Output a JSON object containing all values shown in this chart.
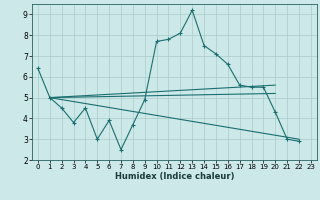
{
  "title": "",
  "xlabel": "Humidex (Indice chaleur)",
  "ylabel": "",
  "xlim": [
    -0.5,
    23.5
  ],
  "ylim": [
    2,
    9.5
  ],
  "bg_color": "#cce8e8",
  "grid_color": "#aacccc",
  "line_color": "#1a6e6e",
  "xticks": [
    0,
    1,
    2,
    3,
    4,
    5,
    6,
    7,
    8,
    9,
    10,
    11,
    12,
    13,
    14,
    15,
    16,
    17,
    18,
    19,
    20,
    21,
    22,
    23
  ],
  "yticks": [
    2,
    3,
    4,
    5,
    6,
    7,
    8,
    9
  ],
  "series": [
    {
      "x": [
        0,
        1,
        2,
        3,
        4,
        5,
        6,
        7,
        8,
        9,
        10,
        11,
        12,
        13,
        14,
        15,
        16,
        17,
        18,
        19,
        20,
        21,
        22
      ],
      "y": [
        6.4,
        5.0,
        4.5,
        3.8,
        4.5,
        3.0,
        3.9,
        2.5,
        3.7,
        4.9,
        7.7,
        7.8,
        8.1,
        9.2,
        7.5,
        7.1,
        6.6,
        5.6,
        5.5,
        5.5,
        4.3,
        3.0,
        2.9
      ],
      "marker": true
    },
    {
      "x": [
        1,
        20
      ],
      "y": [
        5.0,
        5.6
      ],
      "marker": false
    },
    {
      "x": [
        1,
        20
      ],
      "y": [
        5.0,
        5.2
      ],
      "marker": false
    },
    {
      "x": [
        1,
        22
      ],
      "y": [
        5.0,
        3.0
      ],
      "marker": false
    }
  ]
}
